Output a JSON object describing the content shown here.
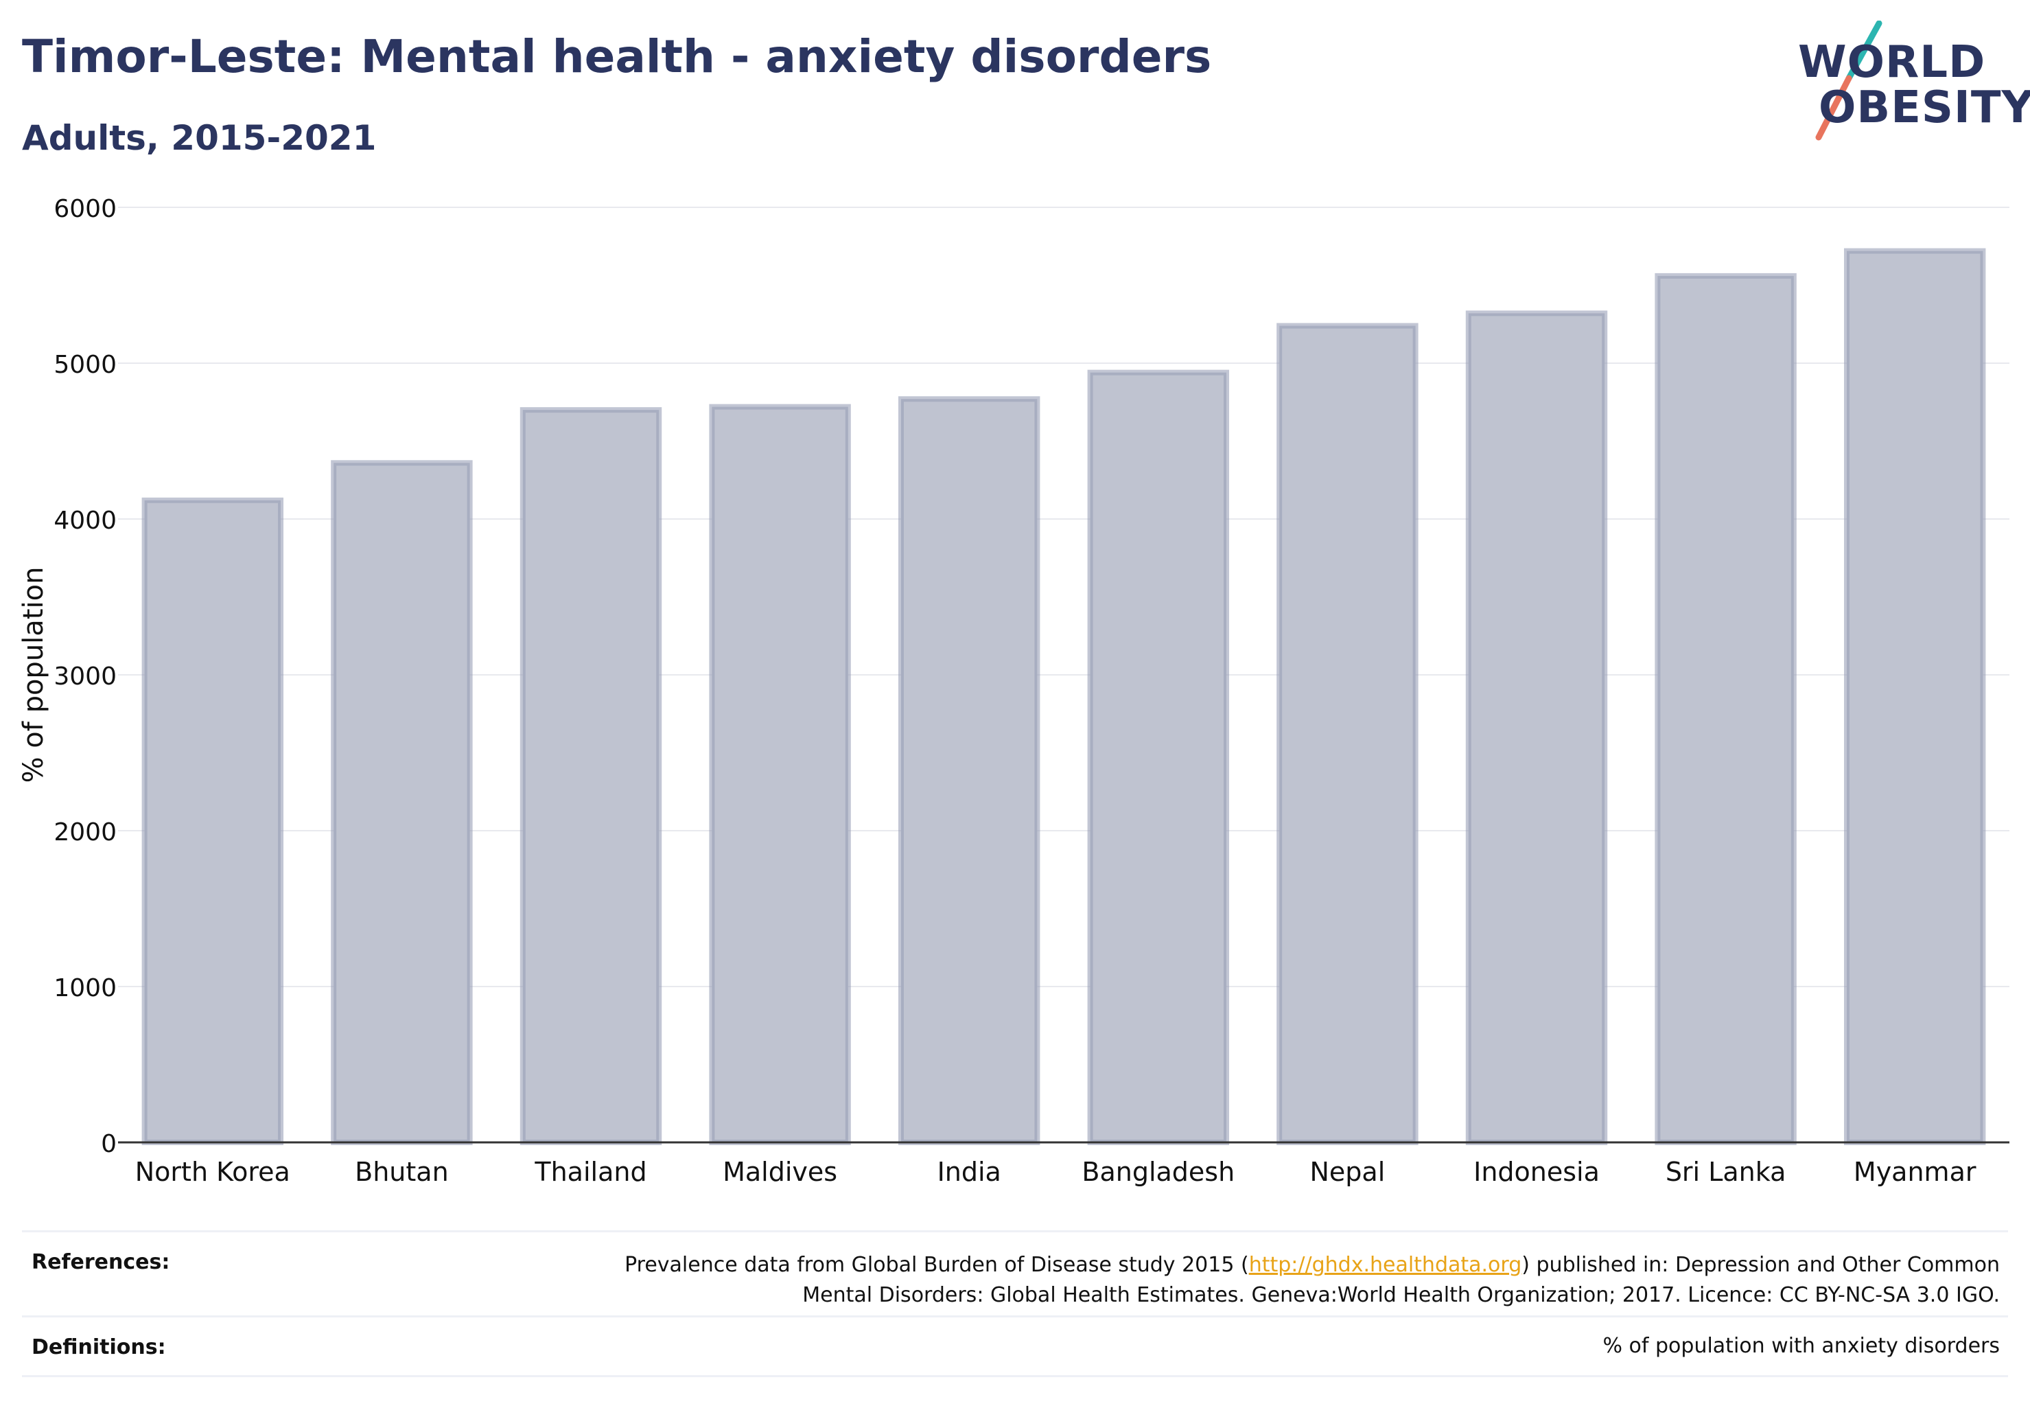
{
  "header": {
    "title": "Timor-Leste: Mental health - anxiety disorders",
    "subtitle": "Adults, 2015-2021"
  },
  "logo": {
    "line1": "WORLD",
    "line2": "OBESITY",
    "slash_colors": [
      "#2cb5b0",
      "#e8745d"
    ]
  },
  "chart_data": {
    "type": "bar",
    "categories": [
      "North Korea",
      "Bhutan",
      "Thailand",
      "Maldives",
      "India",
      "Bangladesh",
      "Nepal",
      "Indonesia",
      "Sri Lanka",
      "Myanmar"
    ],
    "values": [
      4120,
      4360,
      4700,
      4720,
      4770,
      4940,
      5240,
      5320,
      5560,
      5720
    ],
    "ylabel": "% of population",
    "xlabel": "",
    "ylim": [
      0,
      6000
    ],
    "yticks": [
      0,
      1000,
      2000,
      3000,
      4000,
      5000,
      6000
    ],
    "grid": true,
    "bar_fill": "#bfc3d0",
    "bar_stroke": "#9aa0b8"
  },
  "footer": {
    "references_label": "References:",
    "references_pre": "Prevalence data from Global Burden of Disease study 2015 (",
    "references_link": "http://ghdx.healthdata.org",
    "references_post": ") published in: Depression and Other Common",
    "references_line2": "Mental Disorders: Global Health Estimates. Geneva:World Health Organization; 2017. Licence: CC BY-NC-SA 3.0 IGO.",
    "definitions_label": "Definitions:",
    "definitions_text": "% of population with anxiety disorders"
  }
}
